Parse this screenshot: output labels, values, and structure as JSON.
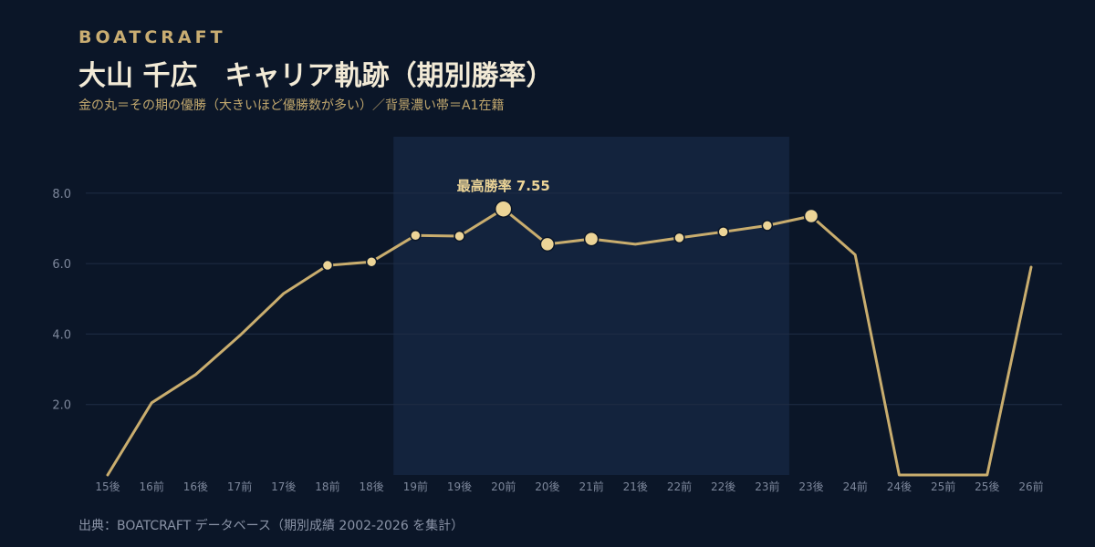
{
  "header": {
    "brand": "BOATCRAFT",
    "title": "大山 千広　キャリア軌跡（期別勝率）",
    "subtitle": "金の丸＝その期の優勝（大きいほど優勝数が多い）／背景濃い帯＝A1在籍"
  },
  "footer": {
    "source": "出典：BOATCRAFT データベース（期別成績 2002-2026 を集計）"
  },
  "colors": {
    "background": "#0b1628",
    "line": "#c9ad6e",
    "marker_fill": "#ecd497",
    "marker_stroke": "#0b1628",
    "band": "#13233d",
    "grid": "#1f2d45",
    "tick_text": "#7d879b",
    "annotation": "#ecd497"
  },
  "chart_data": {
    "type": "line",
    "title": "大山 千広　キャリア軌跡（期別勝率）",
    "xlabel": "",
    "ylabel": "",
    "categories": [
      "15後",
      "16前",
      "16後",
      "17前",
      "17後",
      "18前",
      "18後",
      "19前",
      "19後",
      "20前",
      "20後",
      "21前",
      "21後",
      "22前",
      "22後",
      "23前",
      "23後",
      "24前",
      "24後",
      "25前",
      "25後",
      "26前"
    ],
    "y_ticks": [
      2.0,
      4.0,
      6.0,
      8.0
    ],
    "ylim": [
      0,
      9.6
    ],
    "grid": true,
    "series": [
      {
        "values": [
          0.0,
          2.05,
          2.85,
          3.95,
          5.15,
          5.95,
          6.05,
          6.8,
          6.78,
          7.55,
          6.55,
          6.7,
          6.55,
          6.73,
          6.9,
          7.08,
          7.35,
          6.25,
          0.0,
          0.0,
          0.0,
          5.9
        ]
      }
    ],
    "wins": [
      0,
      0,
      0,
      0,
      0,
      1,
      1,
      1,
      1,
      3,
      2,
      2,
      0,
      1,
      1,
      1,
      2,
      0,
      0,
      0,
      0,
      0
    ],
    "a1_band": {
      "from": "19前",
      "to": "23前"
    },
    "annotation": {
      "category": "20前",
      "text": "最高勝率 7.55"
    }
  }
}
